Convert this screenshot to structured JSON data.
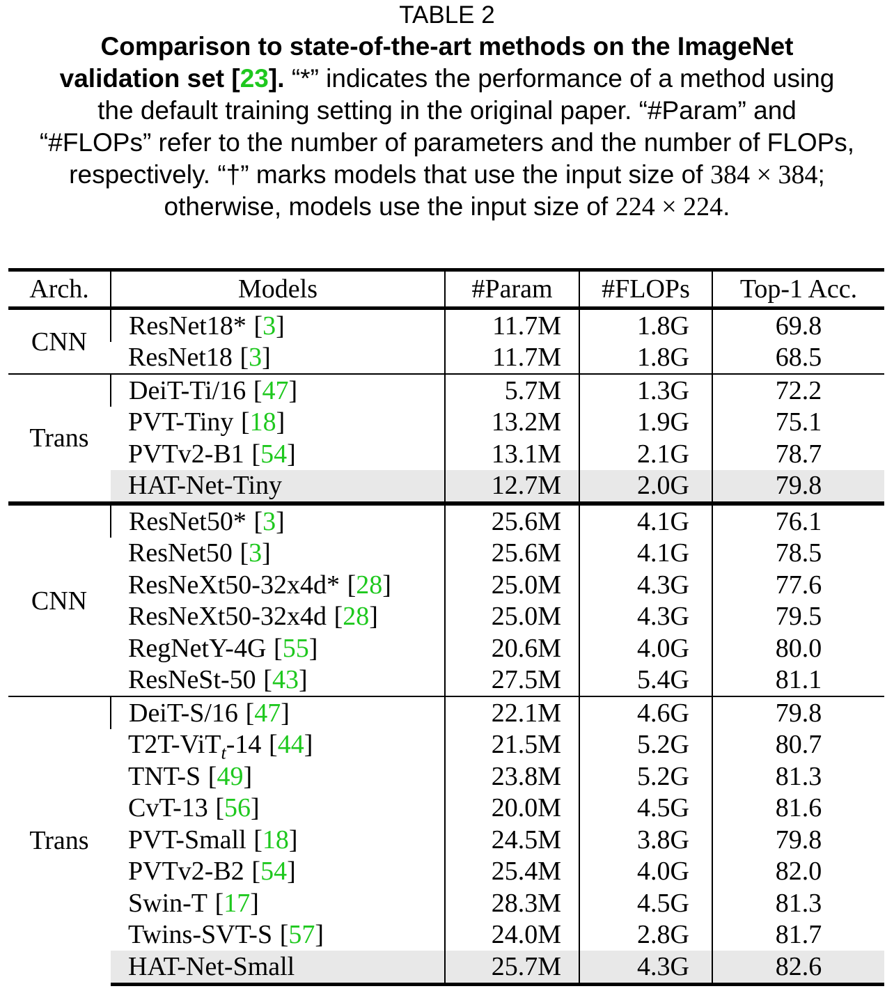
{
  "caption": {
    "label": "TABLE 2",
    "title_1": "Comparison to state-of-the-art methods on the ImageNet",
    "title_2": "validation set [",
    "title_cite": "23",
    "title_3": "].",
    "text_1": "“*” indicates the performance of a method using",
    "text_2": "the default training setting in the original paper. “#Param” and",
    "text_3": "“#FLOPs” refer to the number of parameters and the number of FLOPs,",
    "text_4": "respectively. “†” marks models that use the input size of",
    "size_1": "384 × 384",
    "text_5": ";",
    "text_6": "otherwise, models use the input size of",
    "size_2": "224 × 224",
    "text_7": "."
  },
  "table": {
    "header": [
      "Arch.",
      "Models",
      "#Param",
      "#FLOPs",
      "Top-1 Acc."
    ],
    "cite_brackets": [
      "[",
      "]"
    ],
    "sections": [
      {
        "groups": [
          {
            "arch": "CNN",
            "rows": [
              {
                "model": "ResNet18*",
                "cite": "3",
                "param": "11.7M",
                "flops": "1.8G",
                "acc": "69.8"
              },
              {
                "model": "ResNet18",
                "cite": "3",
                "param": "11.7M",
                "flops": "1.8G",
                "acc": "68.5"
              }
            ]
          },
          {
            "arch": "Trans",
            "rows": [
              {
                "model": "DeiT-Ti/16",
                "cite": "47",
                "param": "5.7M",
                "flops": "1.3G",
                "acc": "72.2"
              },
              {
                "model": "PVT-Tiny",
                "cite": "18",
                "param": "13.2M",
                "flops": "1.9G",
                "acc": "75.1"
              },
              {
                "model": "PVTv2-B1",
                "cite": "54",
                "param": "13.1M",
                "flops": "2.1G",
                "acc": "78.7"
              },
              {
                "model": "HAT-Net-Tiny",
                "param": "12.7M",
                "flops": "2.0G",
                "acc": "79.8",
                "highlight": true
              }
            ]
          }
        ]
      },
      {
        "groups": [
          {
            "arch": "CNN",
            "rows": [
              {
                "model": "ResNet50*",
                "cite": "3",
                "param": "25.6M",
                "flops": "4.1G",
                "acc": "76.1"
              },
              {
                "model": "ResNet50",
                "cite": "3",
                "param": "25.6M",
                "flops": "4.1G",
                "acc": "78.5"
              },
              {
                "model": "ResNeXt50-32x4d*",
                "cite": "28",
                "param": "25.0M",
                "flops": "4.3G",
                "acc": "77.6"
              },
              {
                "model": "ResNeXt50-32x4d",
                "cite": "28",
                "param": "25.0M",
                "flops": "4.3G",
                "acc": "79.5"
              },
              {
                "model": "RegNetY-4G",
                "cite": "55",
                "param": "20.6M",
                "flops": "4.0G",
                "acc": "80.0"
              },
              {
                "model": "ResNeSt-50",
                "cite": "43",
                "param": "27.5M",
                "flops": "5.4G",
                "acc": "81.1"
              }
            ]
          },
          {
            "arch": "Trans",
            "rows": [
              {
                "model": "DeiT-S/16",
                "cite": "47",
                "param": "22.1M",
                "flops": "4.6G",
                "acc": "79.8"
              },
              {
                "model": "T2T-ViT",
                "model_sub": "t",
                "model_tail": "-14",
                "cite": "44",
                "param": "21.5M",
                "flops": "5.2G",
                "acc": "80.7"
              },
              {
                "model": "TNT-S",
                "cite": "49",
                "param": "23.8M",
                "flops": "5.2G",
                "acc": "81.3"
              },
              {
                "model": "CvT-13",
                "cite": "56",
                "param": "20.0M",
                "flops": "4.5G",
                "acc": "81.6"
              },
              {
                "model": "PVT-Small",
                "cite": "18",
                "param": "24.5M",
                "flops": "3.8G",
                "acc": "79.8"
              },
              {
                "model": "PVTv2-B2",
                "cite": "54",
                "param": "25.4M",
                "flops": "4.0G",
                "acc": "82.0"
              },
              {
                "model": "Swin-T",
                "cite": "17",
                "param": "28.3M",
                "flops": "4.5G",
                "acc": "81.3"
              },
              {
                "model": "Twins-SVT-S",
                "cite": "57",
                "param": "24.0M",
                "flops": "2.8G",
                "acc": "81.7"
              },
              {
                "model": "HAT-Net-Small",
                "param": "25.7M",
                "flops": "4.3G",
                "acc": "82.6",
                "highlight": true
              }
            ]
          }
        ]
      }
    ]
  }
}
